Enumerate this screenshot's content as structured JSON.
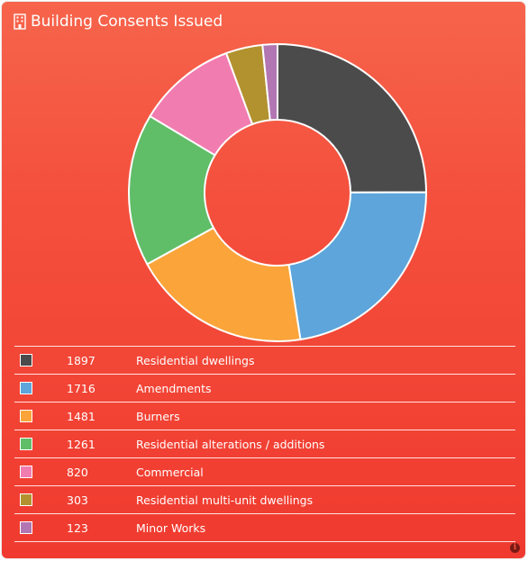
{
  "widget": {
    "title": "Building Consents Issued",
    "title_icon": "building-icon",
    "info_icon": "info-icon",
    "info_glyph": "i"
  },
  "chart_data": {
    "type": "pie",
    "title": "Building Consents Issued",
    "donut": true,
    "legend": "bottom",
    "categories": [
      "Residential dwellings",
      "Amendments",
      "Burners",
      "Residential alterations / additions",
      "Commercial",
      "Residential multi-unit dwellings",
      "Minor Works"
    ],
    "values": [
      1897,
      1716,
      1481,
      1261,
      820,
      303,
      123
    ],
    "value_labels": [
      "1897",
      "1716",
      "1481",
      "1261",
      "820",
      "303",
      "123"
    ],
    "colors": [
      "#4b4b4b",
      "#5da5da",
      "#faa43a",
      "#60bd68",
      "#f17cb0",
      "#b2912f",
      "#b276b2"
    ]
  }
}
